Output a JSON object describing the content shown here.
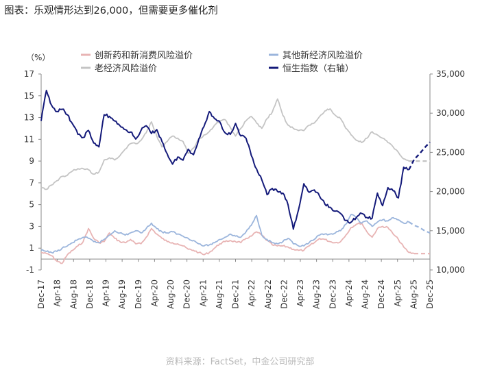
{
  "title": "图表：乐观情形达到26,000，但需要更多催化剂",
  "source": "资料来源：FactSet，中金公司研究部",
  "chart_data": {
    "type": "line",
    "left_axis": {
      "unit_label": "（%）",
      "ticks": [
        "-1",
        "1",
        "3",
        "5",
        "7",
        "9",
        "11",
        "13",
        "15",
        "17"
      ],
      "min": -1,
      "max": 17
    },
    "right_axis": {
      "ticks": [
        "10,000",
        "15,000",
        "20,000",
        "25,000",
        "30,000",
        "35,000"
      ],
      "min": 10000,
      "max": 35000
    },
    "x_ticks": [
      "Dec-17",
      "Apr-18",
      "Aug-18",
      "Dec-18",
      "Apr-19",
      "Aug-19",
      "Dec-19",
      "Apr-20",
      "Aug-20",
      "Dec-20",
      "Apr-21",
      "Aug-21",
      "Dec-21",
      "Apr-22",
      "Aug-22",
      "Dec-22",
      "Apr-23",
      "Aug-23",
      "Dec-23",
      "Apr-24",
      "Aug-24",
      "Dec-24",
      "Apr-25",
      "Aug-25",
      "Dec-25"
    ],
    "legend": [
      "创新药和新消费风险溢价",
      "其他新经济风险溢价",
      "老经济风险溢价",
      "恒生指数（右轴）"
    ],
    "series": [
      {
        "name": "创新药和新消费风险溢价",
        "axis": "left",
        "color": "#e8b4b4",
        "values": [
          0.6,
          0.5,
          0.3,
          -0.2,
          -0.4,
          0.4,
          0.8,
          1.2,
          1.6,
          2.8,
          1.9,
          1.5,
          1.6,
          2.4,
          1.9,
          1.6,
          1.5,
          1.8,
          1.4,
          1.4,
          2.0,
          2.8,
          2.3,
          1.9,
          1.6,
          1.5,
          1.4,
          1.2,
          0.9,
          0.8,
          0.6,
          0.4,
          0.6,
          1.0,
          1.4,
          1.6,
          1.7,
          1.6,
          1.5,
          1.9,
          2.1,
          2.5,
          2.2,
          1.7,
          1.3,
          1.2,
          1.2,
          1.1,
          0.9,
          0.8,
          0.8,
          1.2,
          1.5,
          1.9,
          1.8,
          1.6,
          1.5,
          1.6,
          2.2,
          2.9,
          3.2,
          3.3,
          2.5,
          2.0,
          2.8,
          3.0,
          2.9,
          2.3,
          1.8,
          1.1,
          0.6,
          0.5,
          0.5,
          0.5,
          0.5
        ],
        "projection_from": 71
      },
      {
        "name": "其他新经济风险溢价",
        "axis": "left",
        "color": "#9bb5dc",
        "values": [
          0.8,
          0.7,
          0.6,
          0.7,
          1.0,
          1.2,
          1.5,
          1.8,
          2.0,
          1.9,
          1.6,
          1.5,
          1.8,
          2.2,
          2.6,
          2.4,
          2.2,
          2.4,
          2.6,
          2.4,
          2.8,
          3.3,
          2.8,
          2.5,
          2.4,
          2.5,
          2.3,
          2.1,
          1.9,
          1.7,
          1.4,
          1.2,
          1.3,
          1.5,
          1.8,
          2.0,
          2.3,
          2.1,
          2.0,
          2.5,
          3.1,
          4.0,
          2.2,
          1.8,
          1.5,
          1.4,
          1.6,
          1.9,
          1.4,
          1.2,
          1.2,
          1.5,
          1.8,
          2.2,
          2.3,
          2.3,
          2.4,
          2.6,
          3.2,
          4.1,
          3.8,
          3.3,
          3.5,
          3.0,
          3.4,
          3.6,
          3.5,
          3.8,
          3.6,
          3.3,
          3.4,
          3.1,
          2.9,
          2.6,
          2.4
        ],
        "projection_from": 70
      },
      {
        "name": "老经济风险溢价",
        "axis": "left",
        "color": "#c4c4c4",
        "values": [
          6.6,
          6.4,
          6.8,
          7.2,
          7.6,
          7.7,
          8.1,
          8.3,
          8.3,
          8.2,
          7.8,
          8.0,
          9.1,
          9.3,
          9.1,
          9.5,
          10.1,
          10.6,
          10.6,
          10.9,
          11.6,
          12.6,
          11.3,
          10.3,
          10.8,
          11.3,
          11.1,
          10.8,
          9.7,
          10.2,
          11.0,
          11.4,
          11.7,
          12.3,
          12.7,
          12.8,
          12.1,
          11.3,
          12.0,
          12.7,
          13.1,
          12.5,
          12.0,
          12.9,
          13.5,
          14.7,
          13.2,
          12.3,
          12.0,
          11.8,
          11.8,
          12.3,
          12.5,
          13.1,
          13.6,
          13.8,
          13.2,
          12.9,
          12.0,
          11.4,
          10.9,
          10.7,
          11.1,
          11.7,
          11.4,
          11.1,
          10.7,
          10.3,
          9.8,
          9.2,
          9.0,
          9.0,
          9.0,
          9.0,
          9.0
        ],
        "projection_from": 70
      },
      {
        "name": "恒生指数（右轴）",
        "axis": "right",
        "color": "#141a7a",
        "values": [
          29000,
          32900,
          31000,
          30200,
          30500,
          29800,
          28600,
          27300,
          26900,
          27800,
          26200,
          25700,
          29800,
          29600,
          29000,
          28400,
          27900,
          27600,
          26700,
          27800,
          28400,
          27400,
          27900,
          26400,
          24800,
          23500,
          24400,
          24000,
          25400,
          24700,
          26700,
          28300,
          30200,
          29300,
          28900,
          27500,
          27300,
          28700,
          27100,
          26800,
          24600,
          22900,
          21500,
          19600,
          20400,
          20000,
          19800,
          18300,
          15200,
          17700,
          21000,
          19900,
          20200,
          19400,
          18400,
          18000,
          17500,
          17200,
          16300,
          16100,
          16700,
          17200,
          16700,
          16600,
          19800,
          18200,
          20500,
          20100,
          19200,
          23100,
          22800,
          24100,
          24800,
          25600,
          26300
        ],
        "projection_from": 70
      }
    ]
  }
}
